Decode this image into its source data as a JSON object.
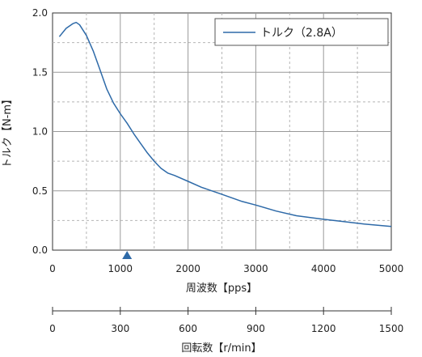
{
  "chart_data": {
    "type": "line",
    "xlabel": "周波数【pps】",
    "ylabel": "トルク【N-m】",
    "secondary_xlabel": "回転数【r/min】",
    "xlim": [
      0,
      5000
    ],
    "ylim": [
      0,
      2.0
    ],
    "x_ticks": [
      0,
      1000,
      2000,
      3000,
      4000,
      5000
    ],
    "x_tick_labels": [
      "0",
      "1000",
      "2000",
      "3000",
      "4000",
      "5000"
    ],
    "y_ticks": [
      0,
      0.5,
      1.0,
      1.5,
      2.0
    ],
    "y_tick_labels": [
      "0.0",
      "0.5",
      "1.0",
      "1.5",
      "2.0"
    ],
    "secondary_x_ticks": [
      0,
      300,
      600,
      900,
      1200,
      1500
    ],
    "secondary_x_tick_labels": [
      "0",
      "300",
      "600",
      "900",
      "1200",
      "1500"
    ],
    "secondary_xlim": [
      0,
      1500
    ],
    "grid": true,
    "legend_position": "top-right",
    "marker": {
      "x": 1100,
      "shape": "triangle-up",
      "color": "#2e6aa8"
    },
    "series": [
      {
        "name": "トルク（2.8A）",
        "color": "#2e6aa8",
        "x": [
          100,
          200,
          300,
          350,
          400,
          500,
          600,
          700,
          800,
          900,
          1000,
          1100,
          1200,
          1300,
          1400,
          1500,
          1600,
          1700,
          1800,
          2000,
          2200,
          2500,
          2800,
          3000,
          3300,
          3600,
          4000,
          4300,
          4600,
          5000
        ],
        "y": [
          1.8,
          1.87,
          1.91,
          1.92,
          1.9,
          1.81,
          1.68,
          1.52,
          1.36,
          1.24,
          1.15,
          1.07,
          0.98,
          0.9,
          0.82,
          0.75,
          0.69,
          0.65,
          0.63,
          0.58,
          0.53,
          0.47,
          0.41,
          0.38,
          0.33,
          0.29,
          0.26,
          0.24,
          0.22,
          0.2
        ]
      }
    ]
  }
}
